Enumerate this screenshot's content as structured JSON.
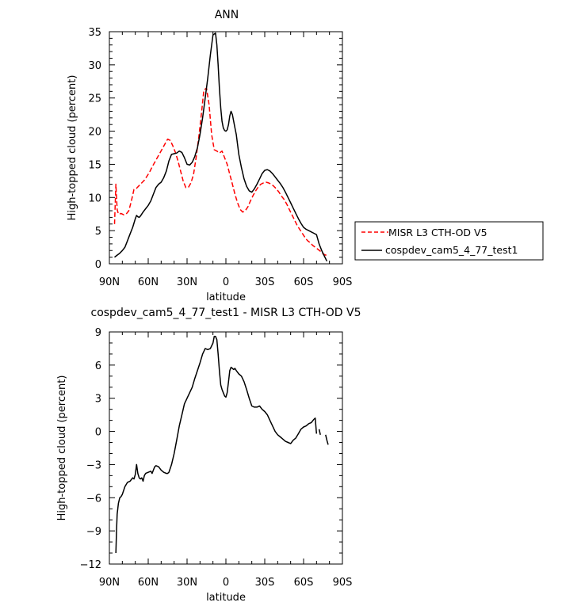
{
  "chart_data": [
    {
      "type": "line",
      "title": "ANN",
      "xlabel": "latitude",
      "ylabel": "High-topped cloud (percent)",
      "xlim": [
        90,
        -90
      ],
      "ylim": [
        0,
        35
      ],
      "x_ticks": [
        90,
        60,
        30,
        0,
        -30,
        -60,
        -90
      ],
      "x_tick_labels": [
        "90N",
        "60N",
        "30N",
        "0",
        "30S",
        "60S",
        "90S"
      ],
      "y_ticks": [
        0,
        5,
        10,
        15,
        20,
        25,
        30,
        35
      ],
      "y_tick_labels": [
        "0",
        "5",
        "10",
        "15",
        "20",
        "25",
        "30",
        "35"
      ],
      "legend_position": "right",
      "series": [
        {
          "name": "MISR L3 CTH-OD V5",
          "color": "#ff0000",
          "dash": "dashed",
          "x": [
            86,
            85,
            84,
            83,
            82,
            81,
            79,
            77,
            75,
            73,
            71,
            69,
            67,
            65,
            63,
            61,
            59,
            57,
            55,
            53,
            51,
            49,
            47,
            45,
            43,
            41,
            39,
            37,
            35,
            33,
            31,
            29,
            27,
            25,
            23,
            21,
            19,
            17,
            15,
            13,
            11,
            9,
            7,
            5,
            3,
            1,
            -1,
            -3,
            -5,
            -7,
            -9,
            -11,
            -13,
            -15,
            -17,
            -19,
            -21,
            -23,
            -25,
            -27,
            -29,
            -31,
            -33,
            -35,
            -37,
            -39,
            -41,
            -43,
            -45,
            -47,
            -49,
            -51,
            -53,
            -55,
            -57,
            -59,
            -61,
            -63,
            -65,
            -67,
            -69,
            -71,
            -73,
            -75,
            -77,
            -79
          ],
          "y": [
            6.0,
            12.0,
            8.2,
            7.5,
            7.5,
            7.6,
            7.4,
            7.5,
            8.0,
            9.5,
            11.2,
            11.4,
            11.8,
            12.2,
            12.6,
            13.2,
            13.8,
            14.6,
            15.3,
            16.0,
            16.7,
            17.4,
            18.1,
            18.8,
            18.6,
            17.8,
            16.8,
            15.5,
            14.0,
            12.5,
            11.5,
            11.5,
            12.2,
            13.5,
            16.0,
            19.0,
            22.5,
            26.2,
            26.5,
            24.0,
            19.5,
            17.2,
            17.0,
            16.7,
            17.0,
            16.0,
            15.0,
            13.5,
            12.0,
            10.5,
            9.2,
            8.2,
            7.8,
            8.0,
            8.6,
            9.5,
            10.3,
            11.0,
            11.6,
            12.0,
            12.2,
            12.3,
            12.2,
            12.0,
            11.7,
            11.3,
            10.8,
            10.2,
            9.7,
            9.0,
            8.2,
            7.4,
            6.6,
            5.8,
            5.2,
            4.6,
            4.0,
            3.5,
            3.2,
            2.8,
            2.5,
            2.2,
            1.9,
            1.5,
            1.3,
            1.5
          ]
        },
        {
          "name": "cospdev_cam5_4_77_test1",
          "color": "#000000",
          "dash": "solid",
          "x": [
            86,
            84,
            82,
            80,
            78,
            76,
            74,
            72,
            70,
            69,
            68,
            67,
            66,
            64,
            62,
            60,
            58,
            56,
            54,
            52,
            50,
            48,
            46,
            44,
            42,
            40,
            38,
            36,
            34,
            32,
            30,
            28,
            26,
            24,
            22,
            20,
            18,
            16,
            14,
            12,
            10,
            8,
            7,
            6,
            5,
            4,
            3,
            2,
            1,
            0,
            -1,
            -2,
            -3,
            -4,
            -5,
            -6,
            -7,
            -8,
            -9,
            -10,
            -12,
            -14,
            -16,
            -18,
            -20,
            -22,
            -24,
            -26,
            -28,
            -30,
            -32,
            -34,
            -36,
            -38,
            -40,
            -42,
            -44,
            -46,
            -48,
            -50,
            -52,
            -54,
            -56,
            -58,
            -60,
            -62,
            -64,
            -66,
            -68,
            -70,
            -72,
            -74,
            -76,
            -78
          ],
          "y": [
            1.0,
            1.3,
            1.6,
            2.0,
            2.5,
            3.5,
            4.5,
            5.5,
            6.8,
            7.3,
            7.1,
            7.0,
            7.2,
            7.8,
            8.3,
            8.8,
            9.5,
            10.5,
            11.5,
            12.0,
            12.3,
            13.0,
            14.0,
            15.5,
            16.5,
            16.6,
            16.7,
            17.0,
            16.8,
            16.0,
            15.0,
            14.9,
            15.3,
            16.2,
            17.5,
            19.5,
            22.0,
            25.0,
            28.0,
            31.5,
            34.5,
            34.8,
            33.0,
            30.0,
            26.5,
            23.5,
            21.5,
            20.5,
            20.1,
            20.0,
            20.2,
            21.0,
            22.3,
            23.0,
            22.5,
            21.5,
            20.5,
            19.5,
            18.0,
            16.5,
            14.5,
            12.8,
            11.7,
            11.0,
            10.8,
            11.3,
            12.0,
            12.8,
            13.6,
            14.1,
            14.2,
            14.0,
            13.6,
            13.1,
            12.6,
            12.1,
            11.5,
            10.8,
            10.0,
            9.2,
            8.4,
            7.6,
            6.8,
            6.1,
            5.5,
            5.2,
            5.0,
            4.8,
            4.6,
            4.4,
            3.0,
            2.0,
            1.2,
            0.4
          ]
        }
      ]
    },
    {
      "type": "line",
      "title": "cospdev_cam5_4_77_test1 - MISR L3 CTH-OD V5",
      "xlabel": "latitude",
      "ylabel": "High-topped cloud (percent)",
      "xlim": [
        90,
        -90
      ],
      "ylim": [
        -12,
        9
      ],
      "x_ticks": [
        90,
        60,
        30,
        0,
        -30,
        -60,
        -90
      ],
      "x_tick_labels": [
        "90N",
        "60N",
        "30N",
        "0",
        "30S",
        "60S",
        "90S"
      ],
      "y_ticks": [
        -12,
        -9,
        -6,
        -3,
        0,
        3,
        6,
        9
      ],
      "y_tick_labels": [
        "−12",
        "−9",
        "−6",
        "−3",
        "0",
        "3",
        "6",
        "9"
      ],
      "series": [
        {
          "name": "",
          "color": "#000000",
          "dash": "solid",
          "x": [
            85,
            84.5,
            84,
            83.5,
            83,
            82,
            81,
            80,
            78,
            76,
            74,
            72,
            71,
            70,
            69,
            68,
            67,
            66,
            65,
            64,
            63,
            62,
            60,
            58,
            57,
            56,
            55,
            54,
            52,
            50,
            48,
            46,
            45,
            44,
            42,
            40,
            38,
            36,
            34,
            32,
            30,
            28,
            26,
            24,
            22,
            20,
            18,
            16,
            14,
            12,
            10,
            9,
            8,
            7,
            6,
            5,
            4,
            3,
            2,
            1,
            0,
            -1,
            -2,
            -3,
            -4,
            -5,
            -6,
            -7,
            -8,
            -10,
            -12,
            -14,
            -16,
            -18,
            -20,
            -22,
            -24,
            -26,
            -28,
            -30,
            -32,
            -34,
            -36,
            -38,
            -40,
            -42,
            -44,
            -46,
            -48,
            -50,
            -52,
            -54,
            -56,
            -58,
            -60,
            -62,
            -64,
            -66,
            -68
          ],
          "y": [
            -11.0,
            -9.0,
            -7.5,
            -7.0,
            -6.5,
            -6.0,
            -5.9,
            -5.7,
            -5.0,
            -4.6,
            -4.5,
            -4.2,
            -4.3,
            -3.9,
            -3.0,
            -3.8,
            -4.2,
            -4.3,
            -4.2,
            -4.5,
            -4.0,
            -3.8,
            -3.7,
            -3.6,
            -3.8,
            -3.5,
            -3.2,
            -3.1,
            -3.2,
            -3.5,
            -3.7,
            -3.8,
            -3.8,
            -3.7,
            -3.0,
            -2.0,
            -0.8,
            0.5,
            1.5,
            2.5,
            3.0,
            3.5,
            4.0,
            4.8,
            5.5,
            6.2,
            7.0,
            7.5,
            7.4,
            7.5,
            8.0,
            8.6,
            8.6,
            8.3,
            7.0,
            5.5,
            4.2,
            3.8,
            3.5,
            3.2,
            3.1,
            3.5,
            4.5,
            5.5,
            5.8,
            5.7,
            5.6,
            5.7,
            5.5,
            5.2,
            5.0,
            4.5,
            3.8,
            3.0,
            2.3,
            2.2,
            2.2,
            2.3,
            2.0,
            1.8,
            1.5,
            1.0,
            0.5,
            0.0,
            -0.3,
            -0.5,
            -0.7,
            -0.9,
            -1.0,
            -1.1,
            -0.8,
            -0.6,
            -0.2,
            0.2,
            0.4,
            0.5,
            0.7,
            0.8,
            1.1
          ]
        },
        {
          "name": "",
          "color": "#000000",
          "dash": "solid",
          "x": [
            -68,
            -69,
            -70
          ],
          "y": [
            1.1,
            1.2,
            -0.2
          ]
        },
        {
          "name": "",
          "color": "#000000",
          "dash": "solid",
          "x": [
            -72,
            -73
          ],
          "y": [
            0.2,
            -0.3
          ]
        },
        {
          "name": "",
          "color": "#000000",
          "dash": "solid",
          "x": [
            -77,
            -78,
            -79
          ],
          "y": [
            -0.3,
            -0.8,
            -1.2
          ]
        }
      ]
    }
  ]
}
